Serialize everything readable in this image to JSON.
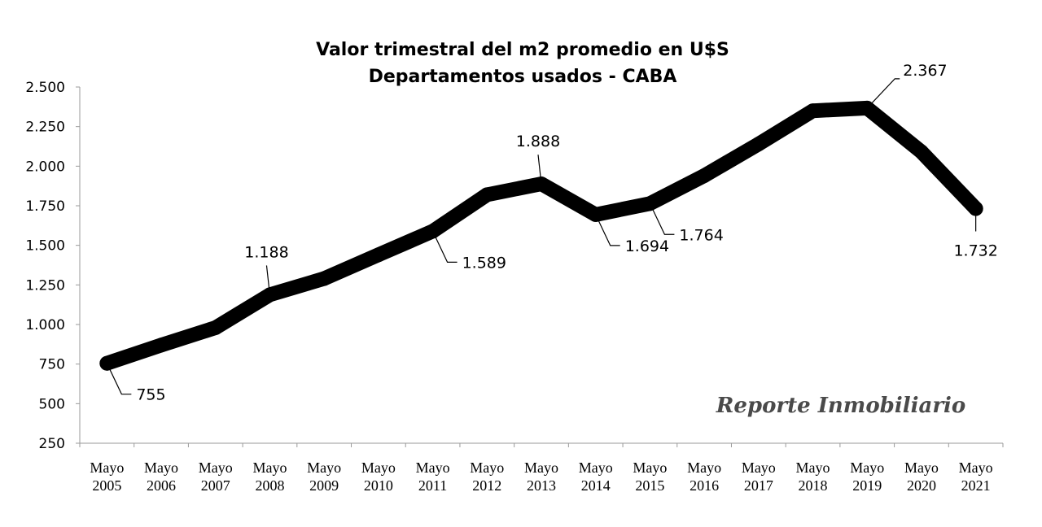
{
  "chart_data": {
    "type": "line",
    "title": "Valor trimestral del m2 promedio en U$S",
    "subtitle": "Departamentos usados - CABA",
    "categories": [
      [
        "Mayo",
        "2005"
      ],
      [
        "Mayo",
        "2006"
      ],
      [
        "Mayo",
        "2007"
      ],
      [
        "Mayo",
        "2008"
      ],
      [
        "Mayo",
        "2009"
      ],
      [
        "Mayo",
        "2010"
      ],
      [
        "Mayo",
        "2011"
      ],
      [
        "Mayo",
        "2012"
      ],
      [
        "Mayo",
        "2013"
      ],
      [
        "Mayo",
        "2014"
      ],
      [
        "Mayo",
        "2015"
      ],
      [
        "Mayo",
        "2016"
      ],
      [
        "Mayo",
        "2017"
      ],
      [
        "Mayo",
        "2018"
      ],
      [
        "Mayo",
        "2019"
      ],
      [
        "Mayo",
        "2020"
      ],
      [
        "Mayo",
        "2021"
      ]
    ],
    "values": [
      755,
      870,
      980,
      1188,
      1290,
      1440,
      1589,
      1820,
      1888,
      1694,
      1764,
      1940,
      2140,
      2350,
      2367,
      2090,
      1732
    ],
    "ylim": [
      250,
      2500
    ],
    "yticks": [
      250,
      500,
      750,
      1000,
      1250,
      1500,
      1750,
      2000,
      2250,
      2500
    ],
    "ytick_labels": [
      "250",
      "500",
      "750",
      "1.000",
      "1.250",
      "1.500",
      "1.750",
      "2.000",
      "2.250",
      "2.500"
    ],
    "line_color": "#000000",
    "grid": false,
    "legend": "none",
    "data_labels": [
      {
        "index": 0,
        "text": "755",
        "side": "below-right"
      },
      {
        "index": 3,
        "text": "1.188",
        "side": "above-left"
      },
      {
        "index": 6,
        "text": "1.589",
        "side": "below-right"
      },
      {
        "index": 8,
        "text": "1.888",
        "side": "above-left"
      },
      {
        "index": 9,
        "text": "1.694",
        "side": "below-right"
      },
      {
        "index": 10,
        "text": "1.764",
        "side": "below-right"
      },
      {
        "index": 14,
        "text": "2.367",
        "side": "above-right"
      },
      {
        "index": 16,
        "text": "1.732",
        "side": "below"
      }
    ]
  },
  "watermark": {
    "text": "Reporte Inmobiliario"
  }
}
